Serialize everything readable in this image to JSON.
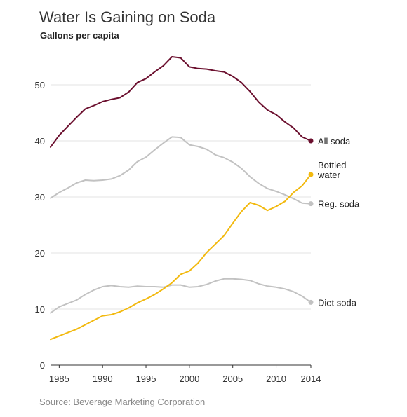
{
  "chart_data": {
    "type": "line",
    "title": "Water Is Gaining on Soda",
    "subtitle": "Gallons per capita",
    "source": "Source: Beverage Marketing Corporation",
    "ylim": [
      0,
      55
    ],
    "xlim": [
      1984,
      2014
    ],
    "yticks": [
      0,
      10,
      20,
      30,
      40,
      50
    ],
    "xticks": [
      1985,
      1990,
      1995,
      2000,
      2005,
      2010,
      2014
    ],
    "grid": true,
    "x": [
      1984,
      1985,
      1986,
      1987,
      1988,
      1989,
      1990,
      1991,
      1992,
      1993,
      1994,
      1995,
      1996,
      1997,
      1998,
      1999,
      2000,
      2001,
      2002,
      2003,
      2004,
      2005,
      2006,
      2007,
      2008,
      2009,
      2010,
      2011,
      2012,
      2013,
      2014
    ],
    "series": [
      {
        "name": "All soda",
        "color": "#6b0f2e",
        "values": [
          38.9,
          41.0,
          42.6,
          44.2,
          45.7,
          46.3,
          47.0,
          47.4,
          47.7,
          48.7,
          50.4,
          51.1,
          52.3,
          53.4,
          55.0,
          54.8,
          53.2,
          52.9,
          52.8,
          52.5,
          52.3,
          51.5,
          50.4,
          48.8,
          46.9,
          45.5,
          44.7,
          43.4,
          42.3,
          40.7,
          40.0
        ]
      },
      {
        "name": "Bottled water",
        "label_lines": [
          "Bottled",
          "water"
        ],
        "color": "#f2b90f",
        "values": [
          4.6,
          5.2,
          5.8,
          6.4,
          7.2,
          8.0,
          8.8,
          9.0,
          9.5,
          10.2,
          11.1,
          11.8,
          12.6,
          13.6,
          14.7,
          16.2,
          16.8,
          18.2,
          20.1,
          21.6,
          23.1,
          25.3,
          27.4,
          29.0,
          28.5,
          27.6,
          28.3,
          29.2,
          30.8,
          32.0,
          34.0
        ]
      },
      {
        "name": "Reg. soda",
        "color": "#c2c2c2",
        "values": [
          29.8,
          30.8,
          31.6,
          32.5,
          33.0,
          32.9,
          33.0,
          33.2,
          33.8,
          34.8,
          36.3,
          37.1,
          38.4,
          39.6,
          40.7,
          40.6,
          39.3,
          39.0,
          38.5,
          37.5,
          37.0,
          36.2,
          35.1,
          33.6,
          32.4,
          31.5,
          31.0,
          30.4,
          29.7,
          28.9,
          28.8
        ]
      },
      {
        "name": "Diet soda",
        "color": "#c2c2c2",
        "values": [
          9.3,
          10.4,
          11.0,
          11.6,
          12.6,
          13.4,
          14.0,
          14.2,
          14.0,
          13.9,
          14.1,
          14.0,
          14.0,
          13.9,
          14.3,
          14.3,
          13.9,
          14.0,
          14.4,
          15.0,
          15.4,
          15.4,
          15.3,
          15.1,
          14.5,
          14.1,
          13.9,
          13.6,
          13.1,
          12.3,
          11.2
        ]
      }
    ]
  }
}
